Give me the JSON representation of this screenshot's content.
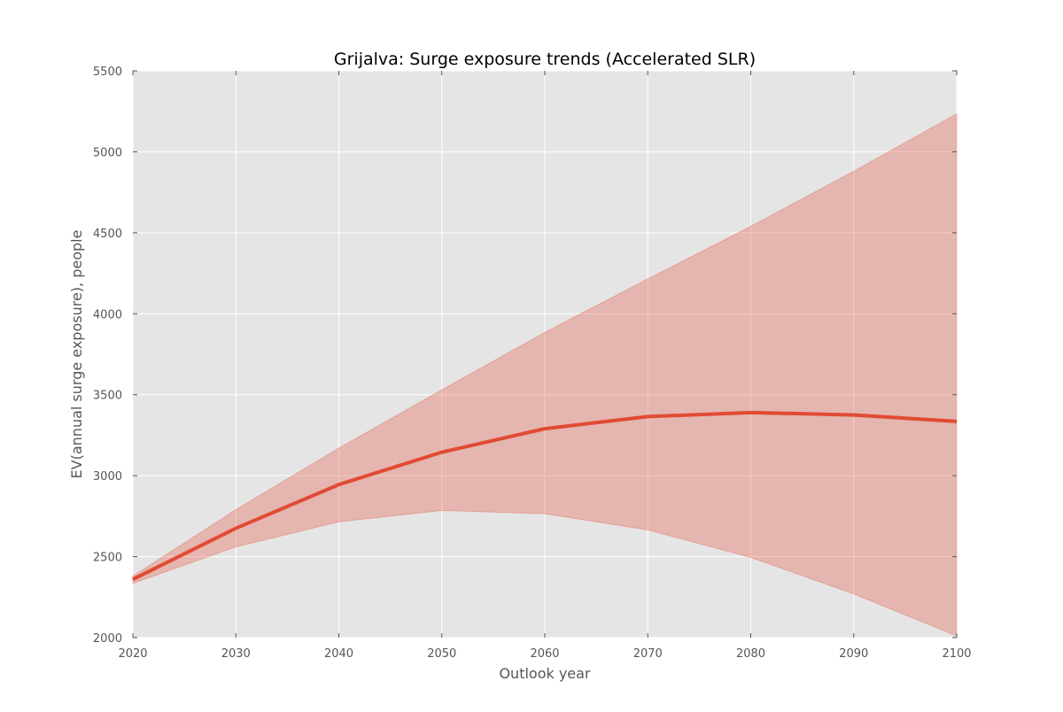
{
  "chart_data": {
    "type": "line",
    "title": "Grijalva: Surge exposure trends (Accelerated SLR)",
    "xlabel": "Outlook year",
    "ylabel": "EV(annual surge exposure), people",
    "xlim": [
      2020,
      2100
    ],
    "ylim": [
      2000,
      5500
    ],
    "x_ticks": [
      2020,
      2030,
      2040,
      2050,
      2060,
      2070,
      2080,
      2090,
      2100
    ],
    "y_ticks": [
      2000,
      2500,
      3000,
      3500,
      4000,
      4500,
      5000,
      5500
    ],
    "grid": true,
    "x": [
      2020,
      2030,
      2040,
      2050,
      2060,
      2070,
      2080,
      2090,
      2100
    ],
    "series": [
      {
        "values": [
          2360,
          2675,
          2945,
          3145,
          3290,
          3365,
          3390,
          3375,
          3335
        ],
        "lower": [
          2335,
          2560,
          2715,
          2785,
          2765,
          2665,
          2495,
          2270,
          2010
        ],
        "upper": [
          2380,
          2790,
          3170,
          3530,
          3885,
          4215,
          4540,
          4880,
          5235
        ]
      }
    ],
    "colors": {
      "line": "#e24a33",
      "band": "#e24a33",
      "background": "#e5e5e5",
      "grid": "#ffffff"
    }
  }
}
